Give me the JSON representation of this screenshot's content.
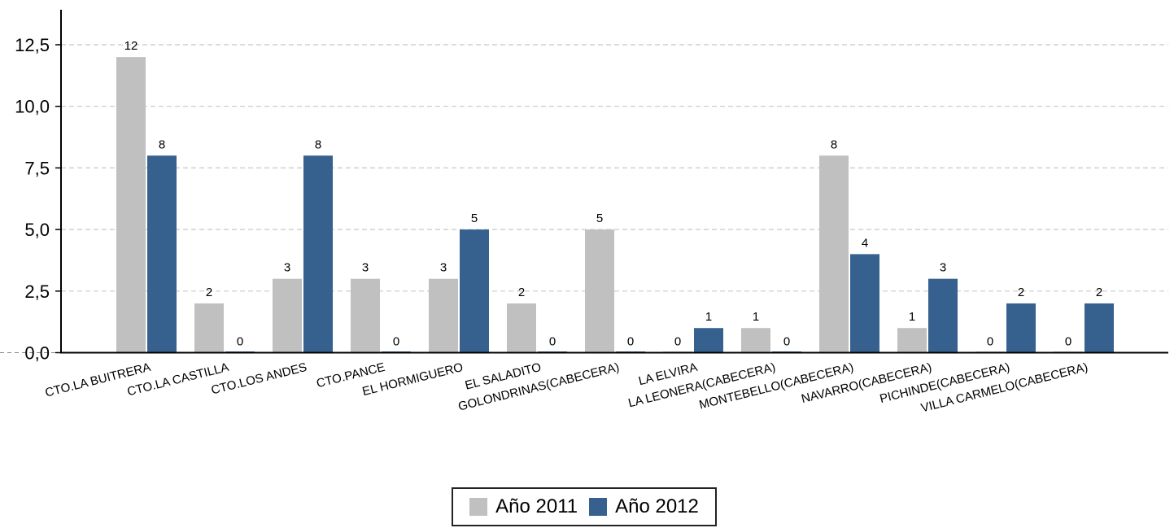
{
  "chart_data": {
    "type": "bar",
    "title": "",
    "xlabel": "",
    "ylabel": "",
    "ylim": [
      0,
      12.5
    ],
    "yticks": [
      "0,0",
      "2,5",
      "5,0",
      "7,5",
      "10,0",
      "12,5"
    ],
    "categories": [
      "CTO.LA BUITRERA",
      "CTO.LA CASTILLA",
      "CTO.LOS ANDES",
      "CTO.PANCE",
      "EL HORMIGUERO",
      "EL SALADITO",
      "GOLONDRINAS(CABECERA)",
      "LA ELVIRA",
      "LA LEONERA(CABECERA)",
      "MONTEBELLO(CABECERA)",
      "NAVARRO(CABECERA)",
      "PICHINDE(CABECERA)",
      "VILLA CARMELO(CABECERA)"
    ],
    "series": [
      {
        "name": "Año 2011",
        "color": "#c0c0c0",
        "values": [
          12,
          2,
          3,
          3,
          3,
          2,
          5,
          0,
          1,
          8,
          1,
          0,
          0
        ]
      },
      {
        "name": "Año 2012",
        "color": "#36618f",
        "values": [
          8,
          0,
          8,
          0,
          5,
          0,
          0,
          1,
          0,
          4,
          3,
          2,
          2
        ]
      }
    ],
    "grid": true,
    "legend_position": "bottom"
  }
}
